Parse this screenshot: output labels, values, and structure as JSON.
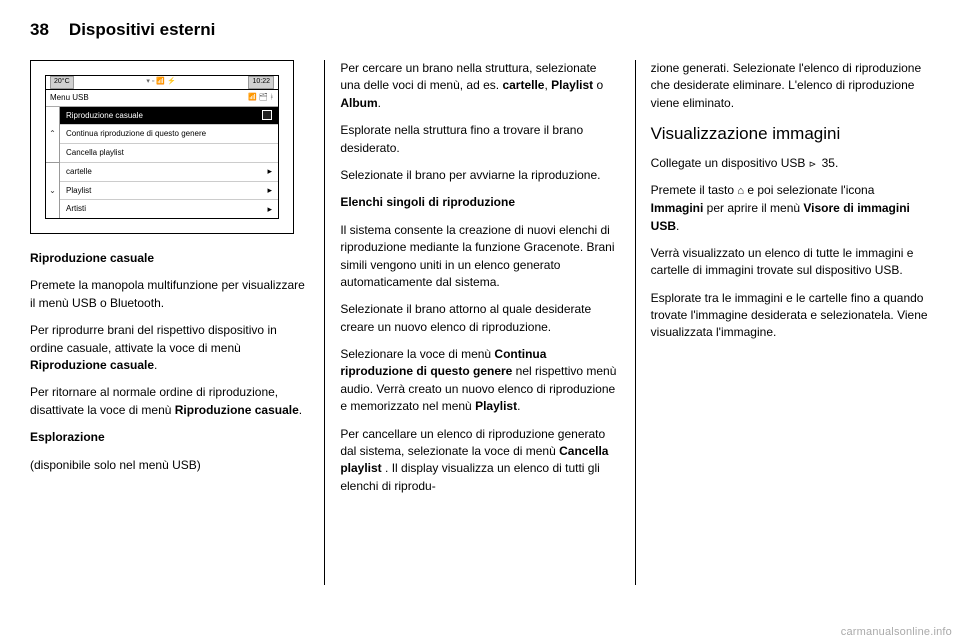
{
  "header": {
    "page_number": "38",
    "chapter_title": "Dispositivi esterni"
  },
  "screenshot": {
    "topbar": {
      "temp": "20°C",
      "time": "10:22"
    },
    "menu_title": "Menu USB",
    "items": [
      {
        "label": "Riproduzione casuale",
        "right": "box",
        "selected": true
      },
      {
        "label": "Continua riproduzione di questo genere",
        "right": "",
        "selected": false
      },
      {
        "label": "Cancella playlist",
        "right": "",
        "selected": false
      },
      {
        "label": "cartelle",
        "right": "arrow",
        "selected": false
      },
      {
        "label": "Playlist",
        "right": "arrow",
        "selected": false
      },
      {
        "label": "Artisti",
        "right": "arrow",
        "selected": false
      }
    ]
  },
  "col1": {
    "h1": "Riproduzione casuale",
    "p1": "Premete la manopola multifunzione per visualizzare il menù USB o Bluetooth.",
    "p2a": "Per riprodurre brani del rispettivo dispositivo in ordine casuale, attivate la voce di menù ",
    "p2b": "Riproduzione casuale",
    "p2c": ".",
    "p3a": "Per ritornare al normale ordine di riproduzione, disattivate la voce di menù ",
    "p3b": "Riproduzione casuale",
    "p3c": ".",
    "h2": "Esplorazione",
    "p4": "(disponibile solo nel menù USB)"
  },
  "col2": {
    "p1a": "Per cercare un brano nella struttura, selezionate una delle voci di menù, ad es. ",
    "p1b": "cartelle",
    "p1c": ", ",
    "p1d": "Playlist",
    "p1e": " o ",
    "p1f": "Album",
    "p1g": ".",
    "p2": "Esplorate nella struttura fino a trovare il brano desiderato.",
    "p3": "Selezionate il brano per avviarne la riproduzione.",
    "h1": "Elenchi singoli di riproduzione",
    "p4": "Il sistema consente la creazione di nuovi elenchi di riproduzione mediante la funzione Gracenote. Brani simili vengono uniti in un elenco generato automaticamente dal sistema.",
    "p5": "Selezionate il brano attorno al quale desiderate creare un nuovo elenco di riproduzione.",
    "p6a": "Selezionare la voce di menù ",
    "p6b": "Continua riproduzione di questo genere",
    "p6c": " nel rispettivo menù audio. Verrà creato un nuovo elenco di riproduzione e memorizzato nel menù ",
    "p6d": "Playlist",
    "p6e": ".",
    "p7a": "Per cancellare un elenco di riproduzione generato dal sistema, selezionate la voce di menù ",
    "p7b": "Cancella playlist",
    "p7c": " . Il display visualizza un elenco di tutti gli elenchi di riprodu-"
  },
  "col3": {
    "p1": "zione generati. Selezionate l'elenco di riproduzione che desiderate eliminare. L'elenco di riproduzione viene eliminato.",
    "h1": "Visualizzazione immagini",
    "p2a": "Collegate un dispositivo USB ",
    "p2b": " 35.",
    "p3a": "Premete il tasto ",
    "p3b": " e poi selezionate l'icona ",
    "p3c": "Immagini",
    "p3d": " per aprire il menù ",
    "p3e": "Visore di immagini USB",
    "p3f": ".",
    "p4": "Verrà visualizzato un elenco di tutte le immagini e cartelle di immagini trovate sul dispositivo USB.",
    "p5": "Esplorate tra le immagini e le cartelle fino a quando trovate l'immagine desiderata e selezionatela. Viene visualizzata l'immagine."
  },
  "watermark": "carmanualsonline.info"
}
